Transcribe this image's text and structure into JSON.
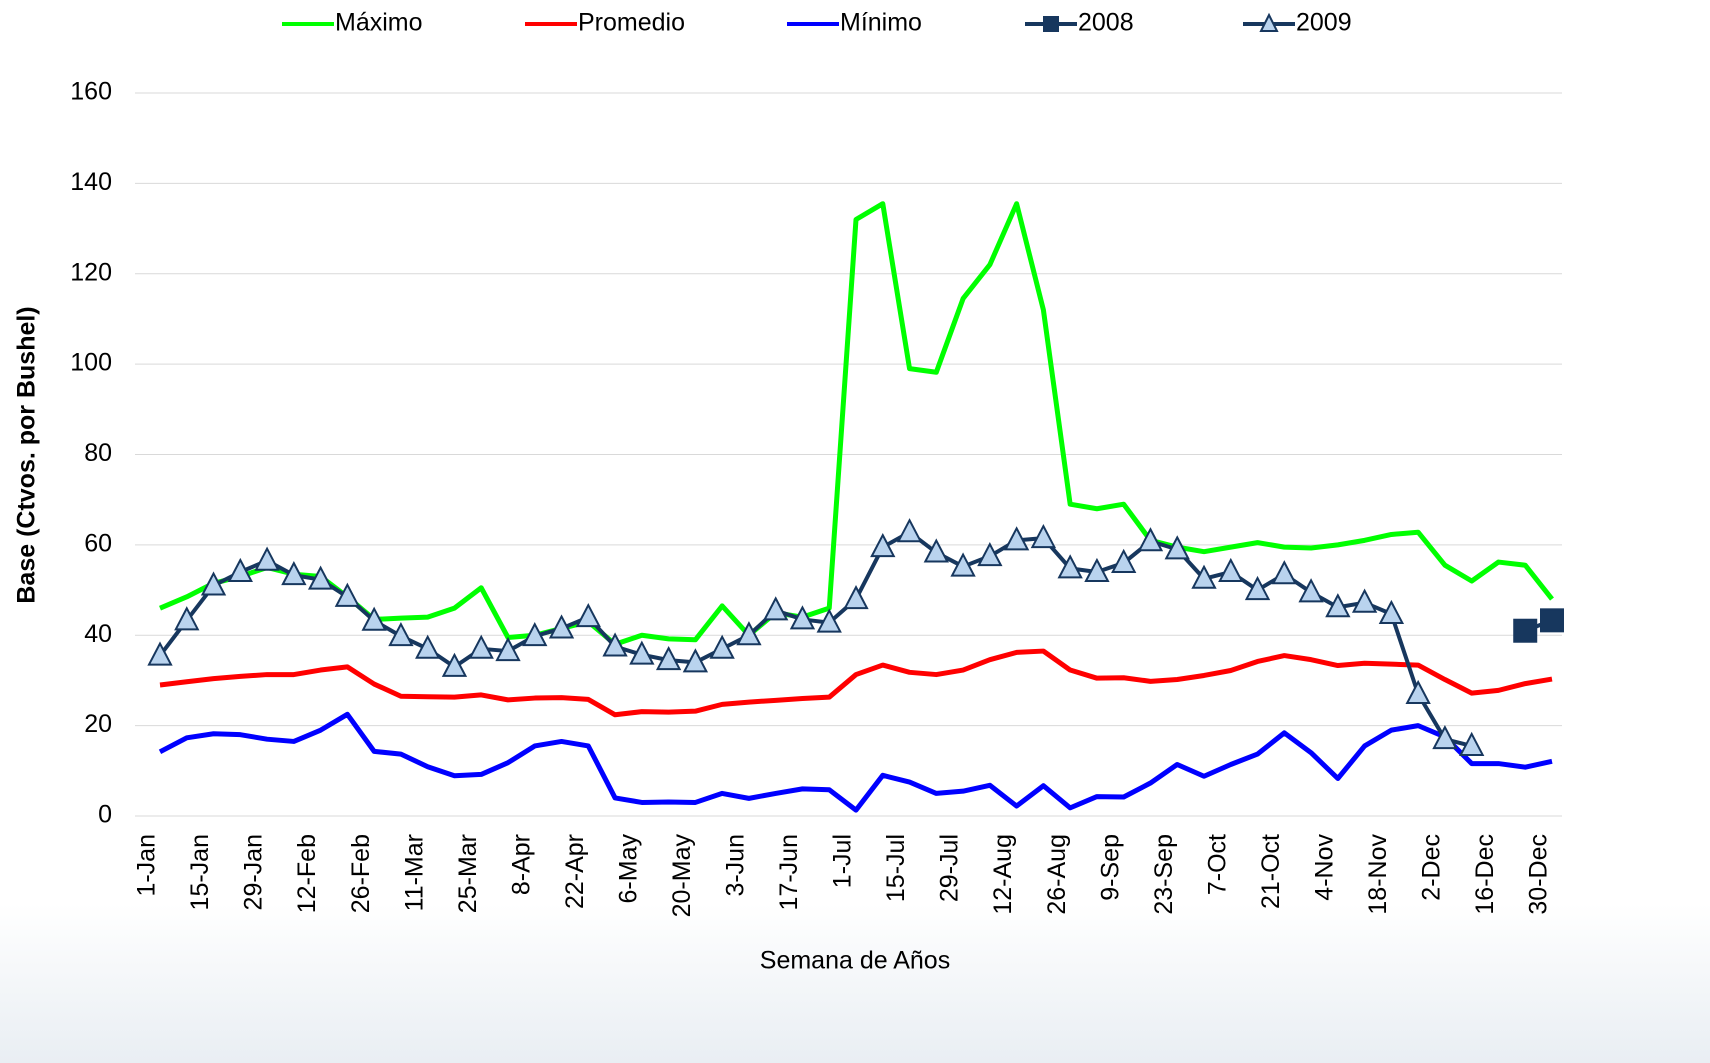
{
  "chart_data": {
    "type": "line",
    "x_label": "Semana de Años",
    "y_label": "Base (Ctvos. por Bushel)",
    "categories": [
      "1-Jan",
      null,
      "15-Jan",
      null,
      "29-Jan",
      null,
      "12-Feb",
      null,
      "26-Feb",
      null,
      "11-Mar",
      null,
      "25-Mar",
      null,
      "8-Apr",
      null,
      "22-Apr",
      null,
      "6-May",
      null,
      "20-May",
      null,
      "3-Jun",
      null,
      "17-Jun",
      null,
      "1-Jul",
      null,
      "15-Jul",
      null,
      "29-Jul",
      null,
      "12-Aug",
      null,
      "26-Aug",
      null,
      "9-Sep",
      null,
      "23-Sep",
      null,
      "7-Oct",
      null,
      "21-Oct",
      null,
      "4-Nov",
      null,
      "18-Nov",
      null,
      "2-Dec",
      null,
      "16-Dec",
      null,
      "30-Dec"
    ],
    "series": [
      {
        "name": "Máximo",
        "color": "#00ff00",
        "marker": "none",
        "values": [
          46,
          48.5,
          51.5,
          53,
          55,
          53.5,
          53,
          48.5,
          43.5,
          43.8,
          44,
          46,
          50.5,
          39.5,
          40,
          41.5,
          43,
          38,
          40,
          39.2,
          39,
          46.5,
          40,
          45,
          44,
          46,
          132,
          135.5,
          99,
          98.2,
          114.5,
          122,
          135.5,
          112,
          69,
          68,
          69,
          61,
          59.5,
          58.5,
          59.5,
          60.5,
          59.5,
          59.3,
          60,
          61,
          62.3,
          62.8,
          55.5,
          52,
          56.2,
          55.5,
          48
        ]
      },
      {
        "name": "Promedio",
        "color": "#ff0000",
        "marker": "none",
        "values": [
          29,
          29.7,
          30.4,
          30.9,
          31.3,
          31.3,
          32.3,
          33,
          29.2,
          26.5,
          26.4,
          26.3,
          26.8,
          25.7,
          26.1,
          26.2,
          25.8,
          22.4,
          23.1,
          23,
          23.2,
          24.7,
          25.2,
          25.6,
          26,
          26.3,
          31.3,
          33.4,
          31.8,
          31.3,
          32.3,
          34.6,
          36.2,
          36.5,
          32.3,
          30.5,
          30.6,
          29.8,
          30.2,
          31.1,
          32.2,
          34.2,
          35.5,
          34.6,
          33.3,
          33.8,
          33.6,
          33.4,
          30.2,
          27.2,
          27.8,
          29.3,
          30.3
        ]
      },
      {
        "name": "Mínimo",
        "color": "#0000ff",
        "marker": "none",
        "values": [
          14.2,
          17.3,
          18.2,
          18,
          17,
          16.5,
          19,
          22.5,
          14.3,
          13.7,
          10.9,
          8.9,
          9.2,
          11.8,
          15.5,
          16.5,
          15.5,
          4,
          3,
          3.1,
          3,
          5,
          3.9,
          5,
          6,
          5.8,
          1.3,
          9,
          7.5,
          5,
          5.5,
          6.8,
          2.2,
          6.7,
          1.8,
          4.3,
          4.2,
          7.3,
          11.4,
          8.8,
          11.4,
          13.7,
          18.4,
          14,
          8.3,
          15.5,
          19,
          20,
          17.5,
          11.6,
          11.6,
          10.8,
          12.1
        ]
      },
      {
        "name": "2008",
        "color": "#17375e",
        "marker": "square",
        "values": [
          null,
          null,
          null,
          null,
          null,
          null,
          null,
          null,
          null,
          null,
          null,
          null,
          null,
          null,
          null,
          null,
          null,
          null,
          null,
          null,
          null,
          null,
          null,
          null,
          null,
          null,
          null,
          null,
          null,
          null,
          null,
          null,
          null,
          null,
          null,
          null,
          null,
          null,
          null,
          null,
          null,
          null,
          null,
          null,
          null,
          null,
          null,
          null,
          null,
          null,
          null,
          41,
          43.3
        ]
      },
      {
        "name": "2009",
        "color": "#17375e",
        "marker": "triangle",
        "marker_fill": "#b9d3ee",
        "values": [
          35.5,
          43.3,
          51,
          54,
          56.5,
          53.3,
          52.3,
          48.5,
          43.2,
          39.8,
          37,
          33,
          37,
          36.5,
          39.8,
          41.5,
          44,
          37.5,
          35.7,
          34.5,
          34,
          37,
          40,
          45.5,
          43.5,
          42.8,
          48,
          59.5,
          62.8,
          58.3,
          55.2,
          57.5,
          61,
          61.5,
          54.8,
          54,
          56,
          60.8,
          59,
          52.5,
          54,
          50,
          53.5,
          49.5,
          46.2,
          47.2,
          44.7,
          27,
          17,
          15.5,
          null,
          null,
          null
        ]
      }
    ],
    "ylim": [
      0,
      160
    ],
    "yticks": [
      0,
      20,
      40,
      60,
      80,
      100,
      120,
      140,
      160
    ],
    "grid": true,
    "legend": "top"
  }
}
